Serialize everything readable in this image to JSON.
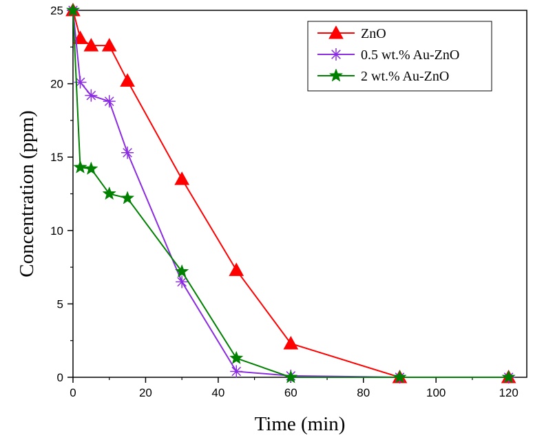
{
  "chart_data": {
    "type": "line",
    "title": "",
    "xlabel": "Time (min)",
    "ylabel": "Concentration (ppm)",
    "xlim": [
      0,
      125
    ],
    "ylim": [
      0,
      25
    ],
    "xticks": [
      0,
      20,
      40,
      60,
      80,
      100,
      120
    ],
    "yticks": [
      0,
      5,
      10,
      15,
      20,
      25
    ],
    "grid": false,
    "legend_position": "top-right",
    "series": [
      {
        "name": "ZnO",
        "color": "#ff0000",
        "marker": "triangle",
        "x": [
          0,
          2,
          5,
          10,
          15,
          30,
          45,
          60,
          90,
          120
        ],
        "y": [
          25,
          23.1,
          22.6,
          22.6,
          20.2,
          13.5,
          7.3,
          2.3,
          0,
          0
        ]
      },
      {
        "name": "0.5 wt.% Au-ZnO",
        "color": "#8a2be2",
        "marker": "asterisk",
        "x": [
          0,
          2,
          5,
          10,
          15,
          30,
          45,
          60,
          90,
          120
        ],
        "y": [
          25,
          20.1,
          19.2,
          18.8,
          15.3,
          6.5,
          0.4,
          0.1,
          0,
          0
        ]
      },
      {
        "name": "2 wt.% Au-ZnO",
        "color": "#008000",
        "marker": "star",
        "x": [
          0,
          2,
          5,
          10,
          15,
          30,
          45,
          60,
          90,
          120
        ],
        "y": [
          25,
          14.3,
          14.2,
          12.5,
          12.2,
          7.2,
          1.3,
          0,
          0,
          0
        ]
      }
    ]
  }
}
